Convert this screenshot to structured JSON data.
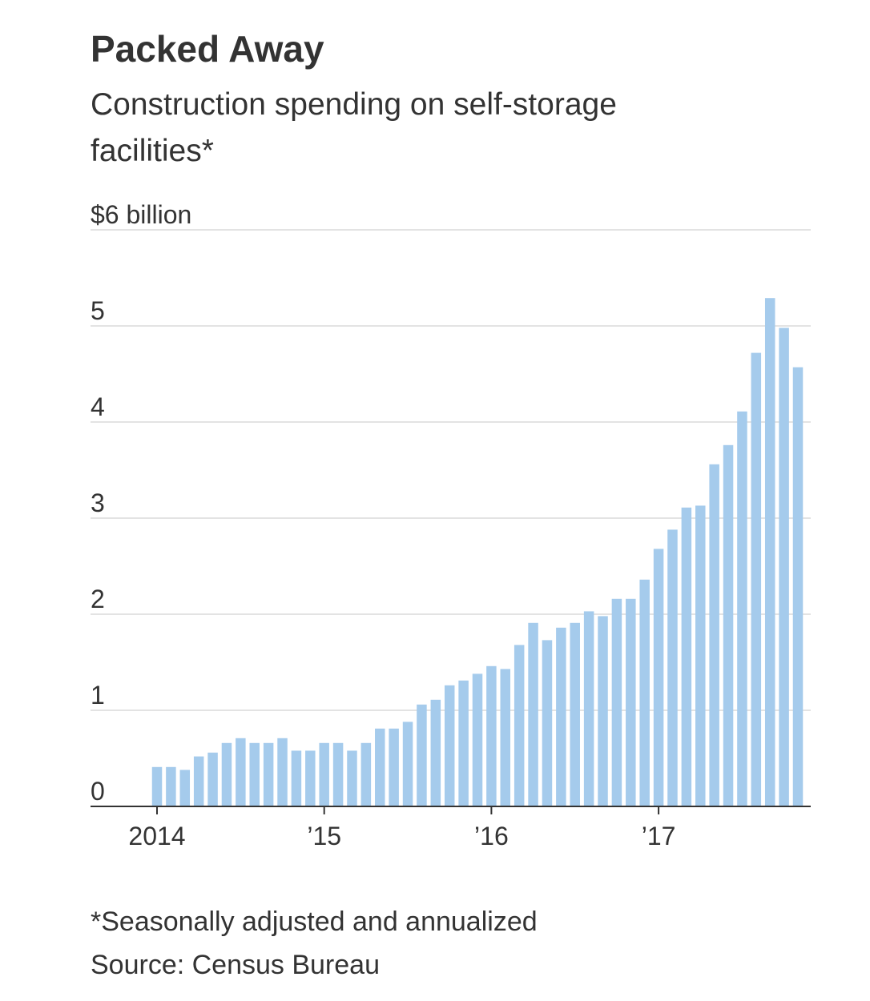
{
  "chart_data": {
    "type": "bar",
    "title": "Packed Away",
    "subtitle": "Construction spending on self-storage facilities*",
    "footnote": "*Seasonally adjusted and annualized",
    "source": "Source: Census Bureau",
    "categories": [
      "2014",
      null,
      null,
      null,
      null,
      null,
      null,
      null,
      null,
      null,
      null,
      null,
      "’15",
      null,
      null,
      null,
      null,
      null,
      null,
      null,
      null,
      null,
      null,
      null,
      "’16",
      null,
      null,
      null,
      null,
      null,
      null,
      null,
      null,
      null,
      null,
      null,
      "’17",
      null,
      null,
      null,
      null,
      null,
      null,
      null,
      null,
      null,
      null
    ],
    "values": [
      0.41,
      0.41,
      0.38,
      0.52,
      0.56,
      0.66,
      0.71,
      0.66,
      0.66,
      0.71,
      0.58,
      0.58,
      0.66,
      0.66,
      0.58,
      0.66,
      0.81,
      0.81,
      0.88,
      1.06,
      1.11,
      1.26,
      1.31,
      1.38,
      1.46,
      1.43,
      1.68,
      1.91,
      1.73,
      1.86,
      1.91,
      2.03,
      1.98,
      2.16,
      2.16,
      2.36,
      2.68,
      2.88,
      3.11,
      3.13,
      3.56,
      3.76,
      4.11,
      4.72,
      5.29,
      4.98,
      4.57
    ],
    "color": "#a5cbec",
    "ylim": [
      0,
      6
    ],
    "yticks": [
      0,
      1,
      2,
      3,
      4,
      5,
      {
        "value": 6,
        "label": "$6 billion"
      }
    ],
    "grid": true
  }
}
